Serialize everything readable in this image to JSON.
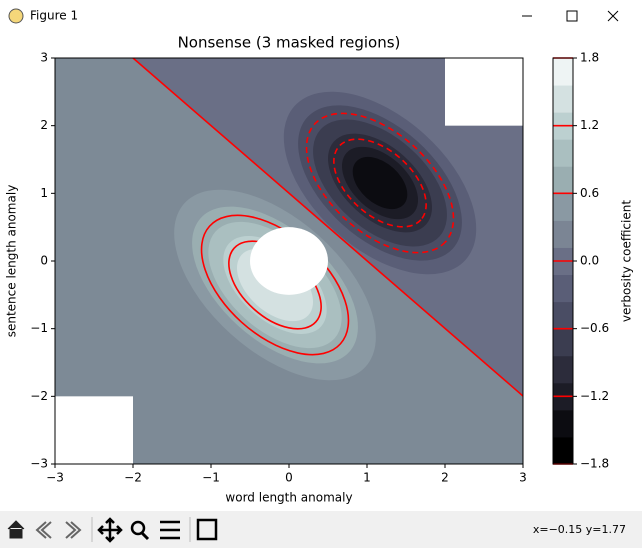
{
  "window": {
    "title": "Figure 1",
    "status": "x=−0.15 y=1.77"
  },
  "chart_data": {
    "type": "contourf",
    "title": "Nonsense (3 masked regions)",
    "xlabel": "word length anomaly",
    "ylabel": "sentence length anomaly",
    "xlim": [
      -3,
      3
    ],
    "ylim": [
      -3,
      3
    ],
    "xticks": [
      {
        "value": -3,
        "label": "−3"
      },
      {
        "value": -2,
        "label": "−2"
      },
      {
        "value": -1,
        "label": "−1"
      },
      0,
      1,
      2,
      3
    ],
    "yticks": [
      {
        "value": -3,
        "label": "−3"
      },
      {
        "value": -2,
        "label": "−2"
      },
      {
        "value": -1,
        "label": "−1"
      },
      0,
      1,
      2,
      3
    ],
    "masked_regions": [
      {
        "x": [
          2,
          3
        ],
        "y": [
          2,
          3
        ]
      },
      {
        "x": [
          -3,
          -2
        ],
        "y": [
          -3,
          -2
        ]
      }
    ],
    "masked_disk": {
      "center": [
        0,
        0
      ],
      "radius": 0.5
    },
    "colorbar": {
      "label": "verbosity coefficient",
      "lim": [
        -1.8,
        1.8
      ],
      "ticks": [
        {
          "value": -1.8,
          "label": "−1.8"
        },
        {
          "value": -1.2,
          "label": "−1.2"
        },
        {
          "value": -0.6,
          "label": "−0.6"
        },
        {
          "value": 0,
          "label": "0.0"
        },
        0.6,
        1.2,
        1.8
      ],
      "band_colors": [
        "#000000",
        "#0c0c11",
        "#1c1c26",
        "#2c2c3b",
        "#3b3d50",
        "#4a4d64",
        "#5a5e77",
        "#6a6f86",
        "#7b8594",
        "#8a99a3",
        "#9aaeb1",
        "#aabfc0",
        "#bcd0d0",
        "#d4e1e1",
        "#eef4f4"
      ]
    },
    "contour_levels": [
      -1.8,
      -1.2,
      -0.6,
      0,
      0.6,
      1.2,
      1.8
    ],
    "contour_color": "red"
  }
}
